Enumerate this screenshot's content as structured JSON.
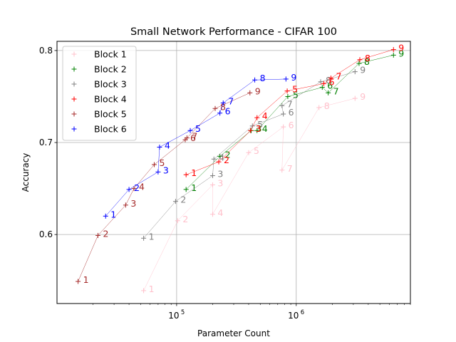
{
  "chart_data": {
    "type": "scatter",
    "title": "Small Network Performance - CIFAR 100",
    "xlabel": "Parameter Count",
    "ylabel": "Accuracy",
    "xscale": "log",
    "xlim": [
      10000,
      9000000
    ],
    "ylim": [
      0.525,
      0.81
    ],
    "yticks": [
      0.6,
      0.7,
      0.8
    ],
    "ytick_labels": [
      "0.6",
      "0.7",
      "0.8"
    ],
    "xticks": [
      100000,
      1000000
    ],
    "xtick_labels": [
      {
        "base": "10",
        "exp": "5"
      },
      {
        "base": "10",
        "exp": "6"
      }
    ],
    "grid": true,
    "legend_position": "top-left",
    "series": [
      {
        "name": "Block 1",
        "color": "#ffc0cb",
        "points": [
          {
            "x": 53000,
            "y": 0.539,
            "label": "1"
          },
          {
            "x": 102000,
            "y": 0.615,
            "label": "2"
          },
          {
            "x": 200000,
            "y": 0.654,
            "label": "3"
          },
          {
            "x": 200000,
            "y": 0.622,
            "label": "4"
          },
          {
            "x": 400000,
            "y": 0.689,
            "label": "5"
          },
          {
            "x": 780000,
            "y": 0.717,
            "label": "6"
          },
          {
            "x": 760000,
            "y": 0.67,
            "label": "7"
          },
          {
            "x": 1550000,
            "y": 0.738,
            "label": "8"
          },
          {
            "x": 3100000,
            "y": 0.748,
            "label": "9"
          }
        ]
      },
      {
        "name": "Block 2",
        "color": "#008000",
        "points": [
          {
            "x": 120000,
            "y": 0.649,
            "label": "1"
          },
          {
            "x": 230000,
            "y": 0.685,
            "label": "2"
          },
          {
            "x": 420000,
            "y": 0.713,
            "label": "3"
          },
          {
            "x": 470000,
            "y": 0.713,
            "label": "4"
          },
          {
            "x": 850000,
            "y": 0.75,
            "label": "5"
          },
          {
            "x": 1650000,
            "y": 0.76,
            "label": "6"
          },
          {
            "x": 1850000,
            "y": 0.754,
            "label": "7"
          },
          {
            "x": 3350000,
            "y": 0.786,
            "label": "8"
          },
          {
            "x": 6500000,
            "y": 0.795,
            "label": "9"
          }
        ]
      },
      {
        "name": "Block 3",
        "color": "#808080",
        "points": [
          {
            "x": 53000,
            "y": 0.596,
            "label": "1"
          },
          {
            "x": 98000,
            "y": 0.636,
            "label": "2"
          },
          {
            "x": 200000,
            "y": 0.664,
            "label": "3"
          },
          {
            "x": 205000,
            "y": 0.682,
            "label": "4"
          },
          {
            "x": 430000,
            "y": 0.718,
            "label": "5"
          },
          {
            "x": 780000,
            "y": 0.731,
            "label": "6"
          },
          {
            "x": 760000,
            "y": 0.74,
            "label": "7"
          },
          {
            "x": 1600000,
            "y": 0.766,
            "label": "8"
          },
          {
            "x": 3100000,
            "y": 0.777,
            "label": "9"
          }
        ]
      },
      {
        "name": "Block 4",
        "color": "#ff0000",
        "points": [
          {
            "x": 120000,
            "y": 0.665,
            "label": "1"
          },
          {
            "x": 225000,
            "y": 0.679,
            "label": "2"
          },
          {
            "x": 415000,
            "y": 0.713,
            "label": "3"
          },
          {
            "x": 470000,
            "y": 0.727,
            "label": "4"
          },
          {
            "x": 840000,
            "y": 0.756,
            "label": "5"
          },
          {
            "x": 1700000,
            "y": 0.764,
            "label": "6"
          },
          {
            "x": 1950000,
            "y": 0.77,
            "label": "7"
          },
          {
            "x": 3400000,
            "y": 0.79,
            "label": "8"
          },
          {
            "x": 6500000,
            "y": 0.801,
            "label": "9"
          }
        ]
      },
      {
        "name": "Block 5",
        "color": "#a52a2a",
        "points": [
          {
            "x": 15000,
            "y": 0.549,
            "label": "1"
          },
          {
            "x": 22000,
            "y": 0.599,
            "label": "2"
          },
          {
            "x": 37500,
            "y": 0.632,
            "label": "3"
          },
          {
            "x": 44000,
            "y": 0.65,
            "label": "4"
          },
          {
            "x": 65000,
            "y": 0.676,
            "label": "5"
          },
          {
            "x": 118000,
            "y": 0.703,
            "label": "6"
          },
          {
            "x": 122000,
            "y": 0.705,
            "label": "7"
          },
          {
            "x": 210000,
            "y": 0.737,
            "label": "8"
          },
          {
            "x": 410000,
            "y": 0.754,
            "label": "9"
          }
        ]
      },
      {
        "name": "Block 6",
        "color": "#0000ff",
        "points": [
          {
            "x": 25500,
            "y": 0.62,
            "label": "1"
          },
          {
            "x": 40000,
            "y": 0.649,
            "label": "2"
          },
          {
            "x": 70000,
            "y": 0.668,
            "label": "3"
          },
          {
            "x": 72000,
            "y": 0.695,
            "label": "4"
          },
          {
            "x": 130000,
            "y": 0.713,
            "label": "5"
          },
          {
            "x": 230000,
            "y": 0.732,
            "label": "6"
          },
          {
            "x": 245000,
            "y": 0.743,
            "label": "7"
          },
          {
            "x": 450000,
            "y": 0.768,
            "label": "8"
          },
          {
            "x": 820000,
            "y": 0.769,
            "label": "9"
          }
        ]
      }
    ]
  }
}
